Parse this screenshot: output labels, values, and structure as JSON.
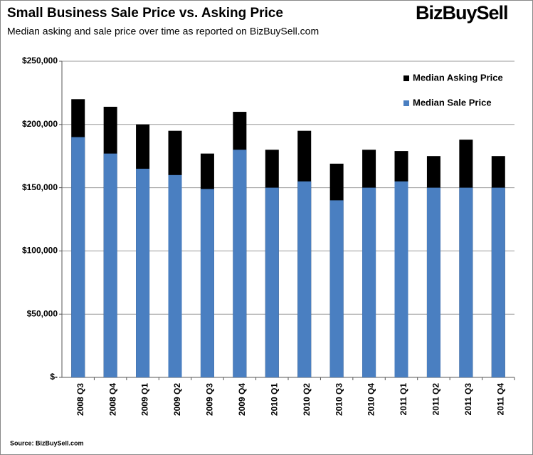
{
  "chart_data": {
    "type": "bar",
    "title": "Small Business Sale Price vs. Asking Price",
    "subtitle": "Median asking and sale price over time as reported  on  BizBuySell.com",
    "brand": "BizBuySell",
    "source": "Source: BizBuySell.com",
    "categories": [
      "2008 Q3",
      "2008 Q4",
      "2009 Q1",
      "2009 Q2",
      "2009 Q3",
      "2009 Q4",
      "2010 Q1",
      "2010 Q2",
      "2010 Q3",
      "2010 Q4",
      "2011 Q1",
      "2011 Q2",
      "2011 Q3",
      "2011 Q4"
    ],
    "series": [
      {
        "name": "Median Asking Price",
        "color": "#000000",
        "values": [
          220000,
          214000,
          200000,
          195000,
          177000,
          210000,
          180000,
          195000,
          169000,
          180000,
          179000,
          175000,
          188000,
          175000
        ]
      },
      {
        "name": "Median Sale Price",
        "color": "#4a7fc1",
        "values": [
          190000,
          177000,
          165000,
          160000,
          149000,
          180000,
          150000,
          155000,
          140000,
          150000,
          155000,
          150000,
          150000,
          150000
        ]
      }
    ],
    "ylim": [
      0,
      250000
    ],
    "yticks": [
      {
        "value": 0,
        "label": "$-"
      },
      {
        "value": 50000,
        "label": "$50,000"
      },
      {
        "value": 100000,
        "label": "$100,000"
      },
      {
        "value": 150000,
        "label": "$150,000"
      },
      {
        "value": 200000,
        "label": "$200,000"
      },
      {
        "value": 250000,
        "label": "$250,000"
      }
    ],
    "grid": true
  }
}
